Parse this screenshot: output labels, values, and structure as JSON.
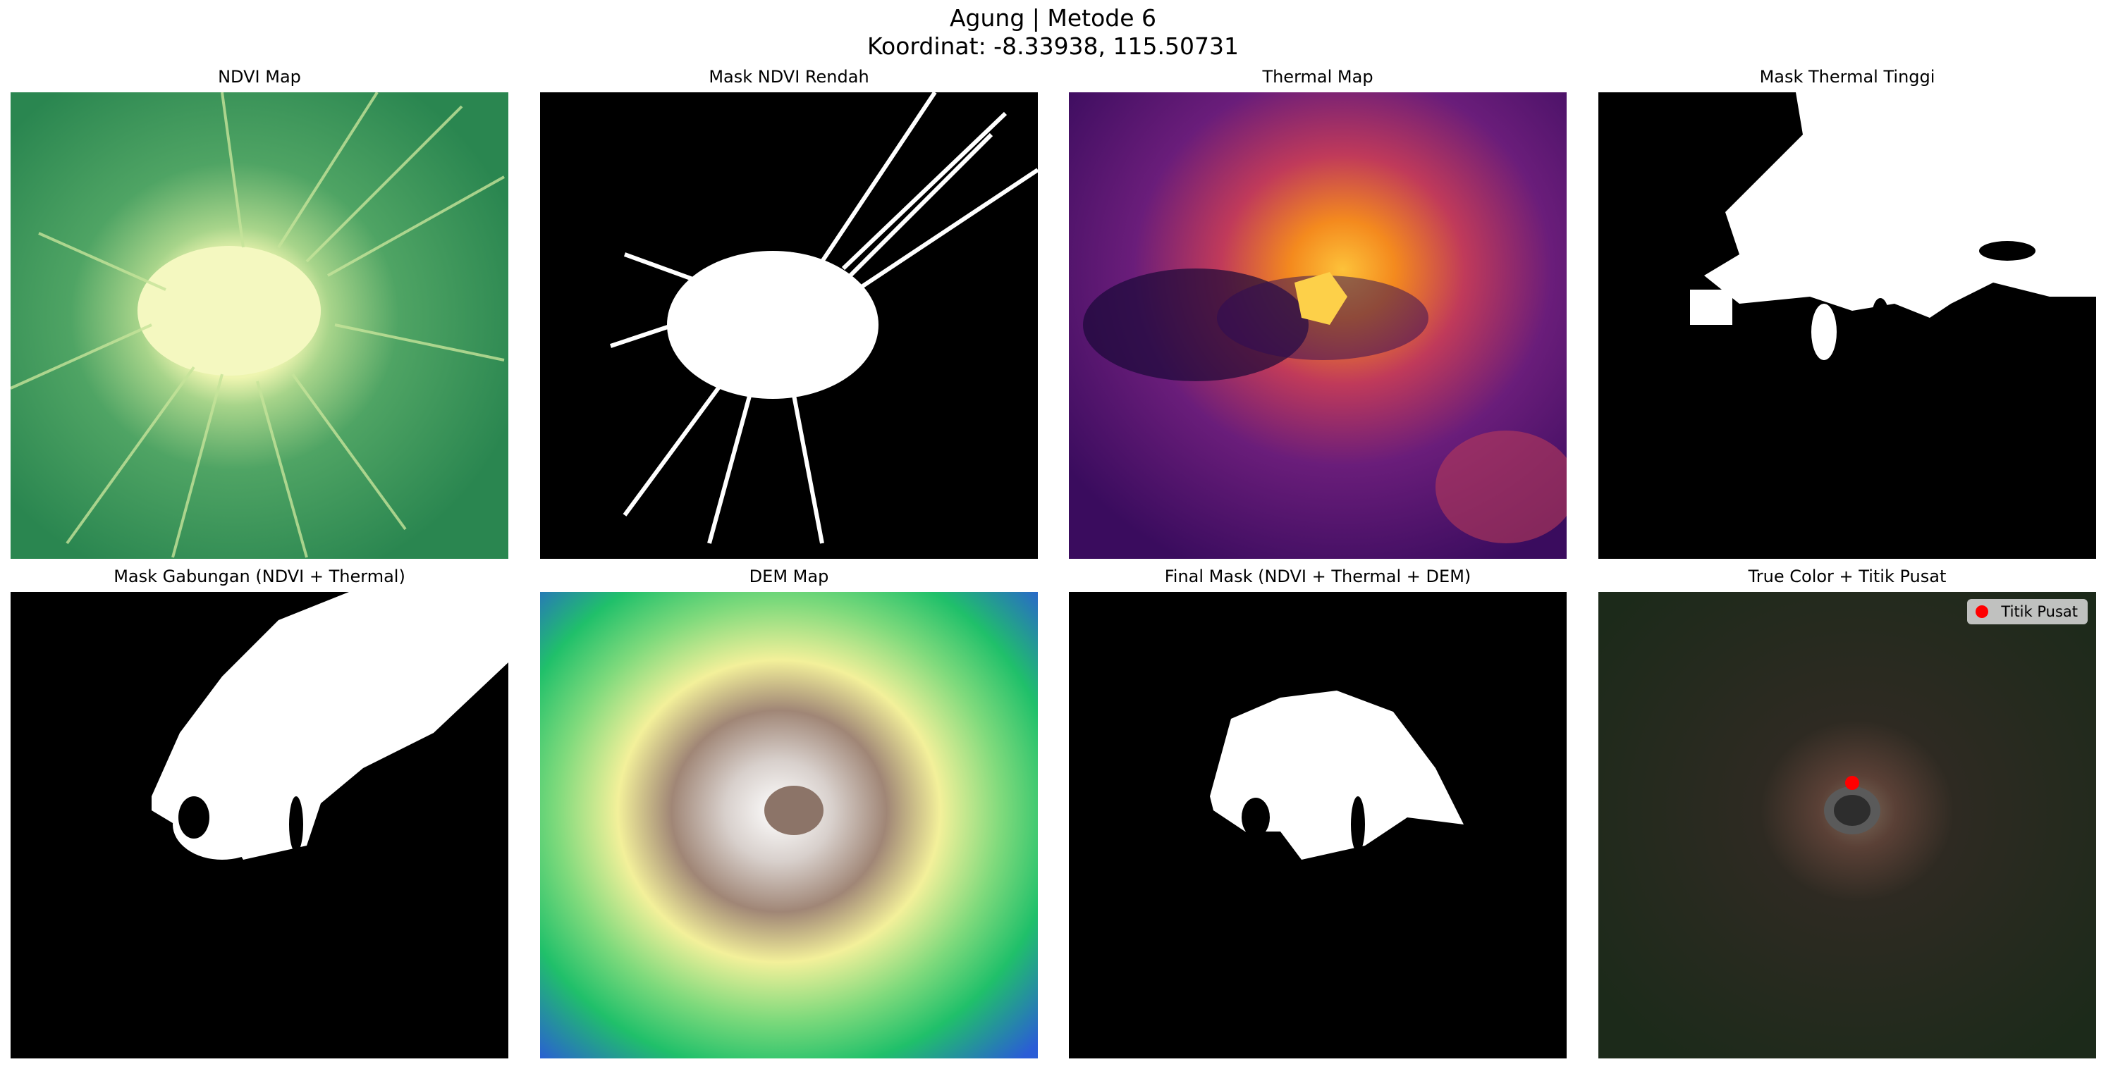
{
  "figure": {
    "title_line1": "Agung | Metode 6",
    "title_line2": "Koordinat: -8.33938, 115.50731"
  },
  "panels": [
    {
      "title": "NDVI Map",
      "colormap": "summer-reversed"
    },
    {
      "title": "Mask NDVI Rendah",
      "colormap": "binary"
    },
    {
      "title": "Thermal Map",
      "colormap": "inferno"
    },
    {
      "title": "Mask Thermal Tinggi",
      "colormap": "binary"
    },
    {
      "title": "Mask Gabungan (NDVI + Thermal)",
      "colormap": "binary"
    },
    {
      "title": "DEM Map",
      "colormap": "terrain"
    },
    {
      "title": "Final Mask (NDVI + Thermal + DEM)",
      "colormap": "binary"
    },
    {
      "title": "True Color + Titik Pusat",
      "colormap": "rgb"
    }
  ],
  "legend": {
    "label": "Titik Pusat",
    "marker_color": "#ff0000"
  },
  "colors": {
    "ndvi_dark": "#2f8a52",
    "ndvi_light": "#f2f7b0",
    "thermal_dark": "#2a0a56",
    "thermal_hot": "#fcb530",
    "dem_low": "#2a6fd1",
    "dem_high": "#ffffff",
    "truecolor_bg": "#1f2a1c",
    "center_marker": "#ff0000"
  }
}
